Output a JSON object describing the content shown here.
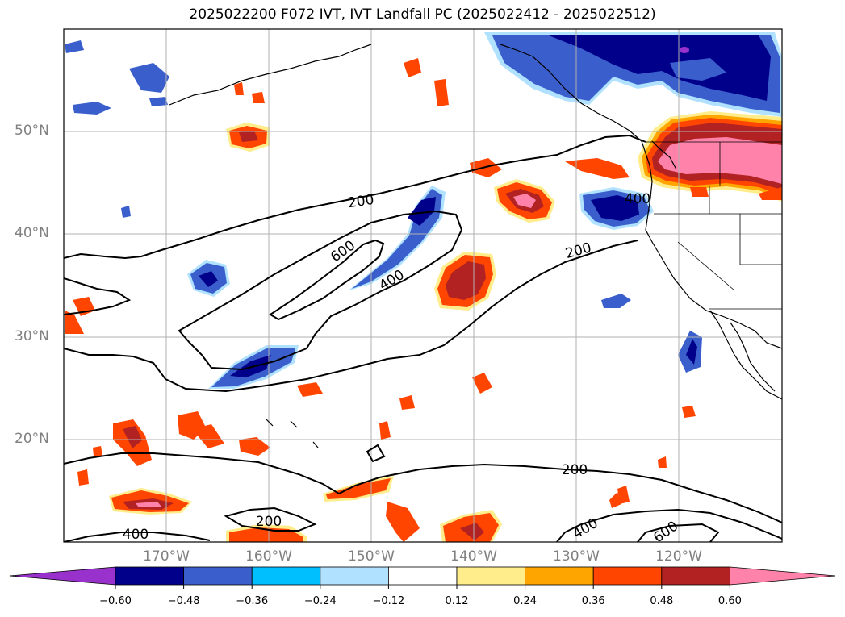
{
  "title": "2025022200 F072 IVT, IVT Landfall PC (2025022412 - 2025022512)",
  "map": {
    "lat_labels": [
      "50°N",
      "40°N",
      "30°N",
      "20°N"
    ],
    "lon_labels": [
      "170°W",
      "160°W",
      "150°W",
      "140°W",
      "130°W",
      "120°W"
    ],
    "contour_labels": [
      "200",
      "600",
      "400",
      "200",
      "400",
      "200",
      "200",
      "400",
      "400",
      "600"
    ]
  },
  "colorbar": {
    "ticks": [
      "−0.60",
      "−0.48",
      "−0.36",
      "−0.24",
      "−0.12",
      "0.12",
      "0.24",
      "0.36",
      "0.48",
      "0.60"
    ],
    "colors": [
      "#9932cc",
      "#00008b",
      "#3a5fcd",
      "#00bfff",
      "#b0e2ff",
      "#ffffff",
      "#ffec8b",
      "#ffa500",
      "#ff4500",
      "#b22222",
      "#ff82ab"
    ]
  }
}
